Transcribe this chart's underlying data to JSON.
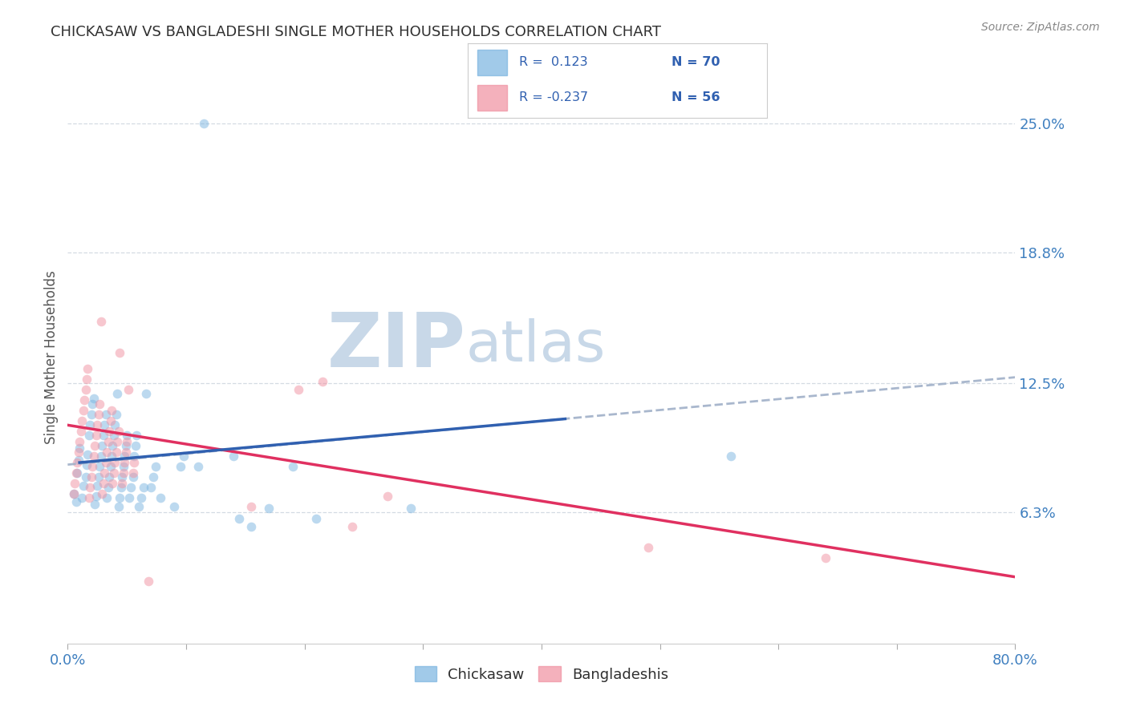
{
  "title": "CHICKASAW VS BANGLADESHI SINGLE MOTHER HOUSEHOLDS CORRELATION CHART",
  "source": "Source: ZipAtlas.com",
  "ylabel": "Single Mother Households",
  "ytick_labels": [
    "25.0%",
    "18.8%",
    "12.5%",
    "6.3%"
  ],
  "ytick_values": [
    0.25,
    0.188,
    0.125,
    0.063
  ],
  "xlim": [
    0.0,
    0.8
  ],
  "ylim": [
    0.0,
    0.275
  ],
  "watermark_zip": "ZIP",
  "watermark_atlas": "atlas",
  "watermark_color": "#c8d8e8",
  "chickasaw_color": "#7ab4e0",
  "bangladeshi_color": "#f090a0",
  "chickasaw_alpha": 0.5,
  "bangladeshi_alpha": 0.5,
  "trend_blue_color": "#3060b0",
  "trend_gray_color": "#a0b0c8",
  "trend_pink_color": "#e03060",
  "grid_color": "#d0d8e0",
  "bg_color": "#ffffff",
  "title_color": "#303030",
  "axis_label_color": "#4080c0",
  "legend_r_color": "#3060b0",
  "legend_n_color": "#3060b0",
  "legend_r_neg_color": "#c03060",
  "chickasaw_points": [
    [
      0.005,
      0.072
    ],
    [
      0.007,
      0.068
    ],
    [
      0.008,
      0.082
    ],
    [
      0.009,
      0.088
    ],
    [
      0.01,
      0.094
    ],
    [
      0.012,
      0.07
    ],
    [
      0.013,
      0.076
    ],
    [
      0.015,
      0.08
    ],
    [
      0.016,
      0.086
    ],
    [
      0.017,
      0.091
    ],
    [
      0.018,
      0.1
    ],
    [
      0.019,
      0.105
    ],
    [
      0.02,
      0.11
    ],
    [
      0.021,
      0.115
    ],
    [
      0.022,
      0.118
    ],
    [
      0.023,
      0.067
    ],
    [
      0.024,
      0.071
    ],
    [
      0.025,
      0.076
    ],
    [
      0.026,
      0.08
    ],
    [
      0.027,
      0.085
    ],
    [
      0.028,
      0.09
    ],
    [
      0.029,
      0.095
    ],
    [
      0.03,
      0.1
    ],
    [
      0.031,
      0.105
    ],
    [
      0.032,
      0.11
    ],
    [
      0.033,
      0.07
    ],
    [
      0.034,
      0.075
    ],
    [
      0.035,
      0.08
    ],
    [
      0.036,
      0.085
    ],
    [
      0.037,
      0.09
    ],
    [
      0.038,
      0.095
    ],
    [
      0.039,
      0.1
    ],
    [
      0.04,
      0.105
    ],
    [
      0.041,
      0.11
    ],
    [
      0.042,
      0.12
    ],
    [
      0.043,
      0.066
    ],
    [
      0.044,
      0.07
    ],
    [
      0.045,
      0.075
    ],
    [
      0.046,
      0.08
    ],
    [
      0.047,
      0.085
    ],
    [
      0.048,
      0.09
    ],
    [
      0.049,
      0.095
    ],
    [
      0.05,
      0.1
    ],
    [
      0.052,
      0.07
    ],
    [
      0.053,
      0.075
    ],
    [
      0.055,
      0.08
    ],
    [
      0.056,
      0.09
    ],
    [
      0.057,
      0.095
    ],
    [
      0.058,
      0.1
    ],
    [
      0.06,
      0.066
    ],
    [
      0.062,
      0.07
    ],
    [
      0.064,
      0.075
    ],
    [
      0.066,
      0.12
    ],
    [
      0.07,
      0.075
    ],
    [
      0.072,
      0.08
    ],
    [
      0.074,
      0.085
    ],
    [
      0.078,
      0.07
    ],
    [
      0.09,
      0.066
    ],
    [
      0.095,
      0.085
    ],
    [
      0.098,
      0.09
    ],
    [
      0.11,
      0.085
    ],
    [
      0.14,
      0.09
    ],
    [
      0.145,
      0.06
    ],
    [
      0.155,
      0.056
    ],
    [
      0.17,
      0.065
    ],
    [
      0.19,
      0.085
    ],
    [
      0.21,
      0.06
    ],
    [
      0.29,
      0.065
    ],
    [
      0.56,
      0.09
    ],
    [
      0.115,
      0.25
    ]
  ],
  "bangladeshi_points": [
    [
      0.005,
      0.072
    ],
    [
      0.006,
      0.077
    ],
    [
      0.007,
      0.082
    ],
    [
      0.008,
      0.087
    ],
    [
      0.009,
      0.092
    ],
    [
      0.01,
      0.097
    ],
    [
      0.011,
      0.102
    ],
    [
      0.012,
      0.107
    ],
    [
      0.013,
      0.112
    ],
    [
      0.014,
      0.117
    ],
    [
      0.015,
      0.122
    ],
    [
      0.016,
      0.127
    ],
    [
      0.017,
      0.132
    ],
    [
      0.018,
      0.07
    ],
    [
      0.019,
      0.075
    ],
    [
      0.02,
      0.08
    ],
    [
      0.021,
      0.085
    ],
    [
      0.022,
      0.09
    ],
    [
      0.023,
      0.095
    ],
    [
      0.024,
      0.1
    ],
    [
      0.025,
      0.105
    ],
    [
      0.026,
      0.11
    ],
    [
      0.027,
      0.115
    ],
    [
      0.028,
      0.155
    ],
    [
      0.029,
      0.072
    ],
    [
      0.03,
      0.077
    ],
    [
      0.031,
      0.082
    ],
    [
      0.032,
      0.087
    ],
    [
      0.033,
      0.092
    ],
    [
      0.034,
      0.097
    ],
    [
      0.035,
      0.102
    ],
    [
      0.036,
      0.107
    ],
    [
      0.037,
      0.112
    ],
    [
      0.038,
      0.077
    ],
    [
      0.039,
      0.082
    ],
    [
      0.04,
      0.087
    ],
    [
      0.041,
      0.092
    ],
    [
      0.042,
      0.097
    ],
    [
      0.043,
      0.102
    ],
    [
      0.044,
      0.14
    ],
    [
      0.046,
      0.077
    ],
    [
      0.047,
      0.082
    ],
    [
      0.048,
      0.087
    ],
    [
      0.049,
      0.092
    ],
    [
      0.05,
      0.097
    ],
    [
      0.051,
      0.122
    ],
    [
      0.055,
      0.082
    ],
    [
      0.056,
      0.087
    ],
    [
      0.24,
      0.056
    ],
    [
      0.49,
      0.046
    ],
    [
      0.64,
      0.041
    ],
    [
      0.27,
      0.071
    ],
    [
      0.155,
      0.066
    ],
    [
      0.195,
      0.122
    ],
    [
      0.215,
      0.126
    ],
    [
      0.068,
      0.03
    ]
  ],
  "blue_trend_x": [
    0.0,
    0.8
  ],
  "blue_trend_y": [
    0.086,
    0.128
  ],
  "pink_trend_x": [
    0.0,
    0.8
  ],
  "pink_trend_y": [
    0.105,
    0.032
  ],
  "marker_size": 70,
  "bottom_legend": [
    "Chickasaw",
    "Bangladeshis"
  ]
}
